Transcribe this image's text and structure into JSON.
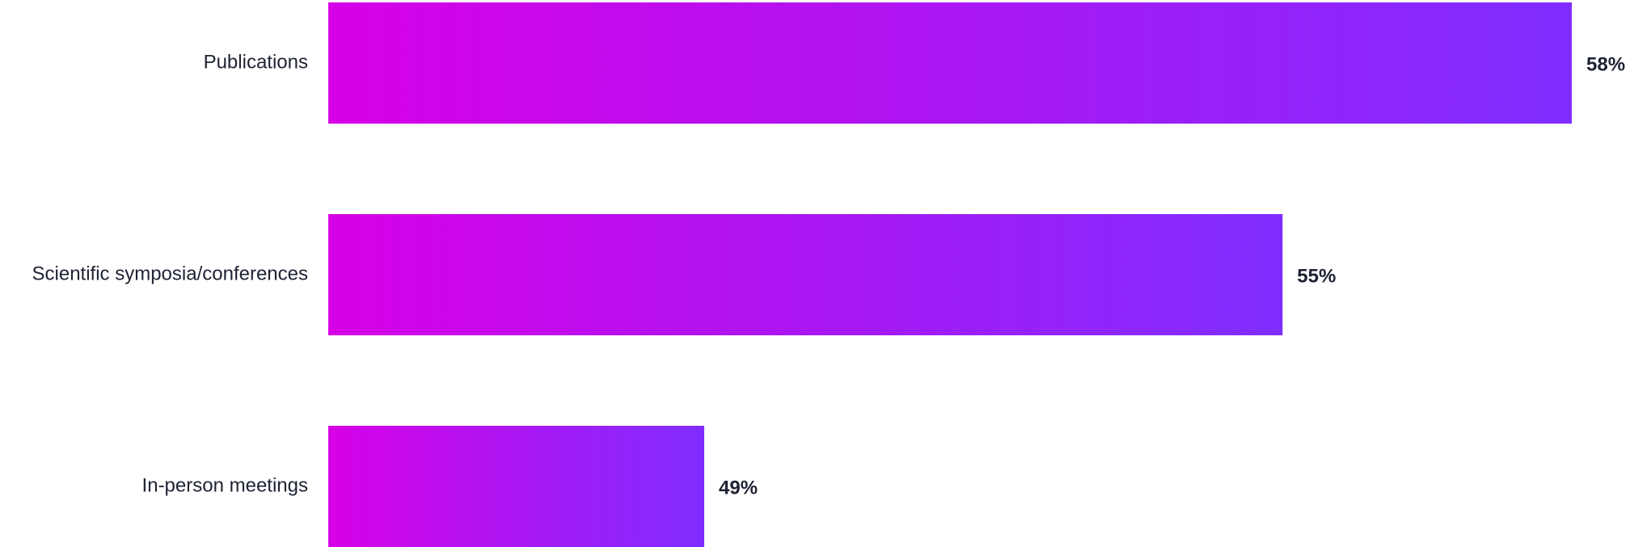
{
  "colors": {
    "bar_start": "#d700e6",
    "bar_end": "#7f2dff",
    "text": "#1e2233",
    "background": "#ffffff"
  },
  "chart_data": {
    "type": "bar",
    "orientation": "horizontal",
    "categories": [
      "Publications",
      "Scientific symposia/conferences",
      "In-person meetings"
    ],
    "values": [
      58,
      55,
      49
    ],
    "value_labels": [
      "58%",
      "55%",
      "49%"
    ],
    "unit": "%",
    "title": "",
    "xlabel": "",
    "ylabel": "",
    "grid": false,
    "legend": "none"
  }
}
